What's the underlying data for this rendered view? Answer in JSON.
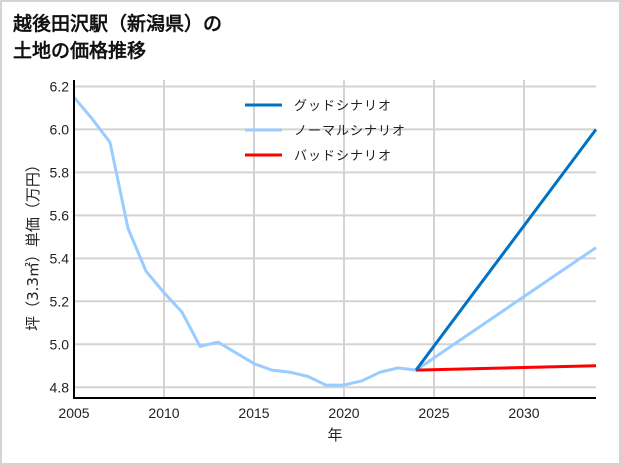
{
  "title": {
    "line1": "越後田沢駅（新潟県）の",
    "line2": "土地の価格推移"
  },
  "chart_data": {
    "type": "line",
    "title": "越後田沢駅（新潟県）の土地の価格推移",
    "xlabel": "年",
    "ylabel": "坪（3.3㎡）単価（万円）",
    "xlim": [
      2005,
      2034
    ],
    "ylim": [
      4.75,
      6.23
    ],
    "xticks": [
      2005,
      2010,
      2015,
      2020,
      2025,
      2030
    ],
    "yticks": [
      4.8,
      5.0,
      5.2,
      5.4,
      5.6,
      5.8,
      6.0,
      6.2
    ],
    "ytick_labels": [
      "4.8",
      "5.0",
      "5.2",
      "5.4",
      "5.6",
      "5.8",
      "6.0",
      "6.2"
    ],
    "grid": true,
    "legend_position": "upper center",
    "series": [
      {
        "name": "グッドシナリオ",
        "color": "#0072c6",
        "x": [
          2024,
          2034
        ],
        "values": [
          4.88,
          6.0
        ]
      },
      {
        "name": "ノーマルシナリオ",
        "color": "#99ccff",
        "x": [
          2005,
          2006,
          2007,
          2008,
          2009,
          2010,
          2011,
          2012,
          2013,
          2014,
          2015,
          2016,
          2017,
          2018,
          2019,
          2020,
          2021,
          2022,
          2023,
          2024,
          2034
        ],
        "values": [
          6.15,
          6.05,
          5.94,
          5.54,
          5.34,
          5.24,
          5.15,
          4.99,
          5.01,
          4.96,
          4.91,
          4.88,
          4.87,
          4.85,
          4.81,
          4.81,
          4.83,
          4.87,
          4.89,
          4.88,
          5.45
        ]
      },
      {
        "name": "バッドシナリオ",
        "color": "#ff0000",
        "x": [
          2024,
          2034
        ],
        "values": [
          4.88,
          4.9
        ]
      }
    ]
  },
  "colors": {
    "good": "#0072c6",
    "normal": "#99ccff",
    "bad": "#ff0000",
    "grid": "#d3d3d3",
    "axis": "#000000",
    "frame": "#d4d4d4"
  }
}
